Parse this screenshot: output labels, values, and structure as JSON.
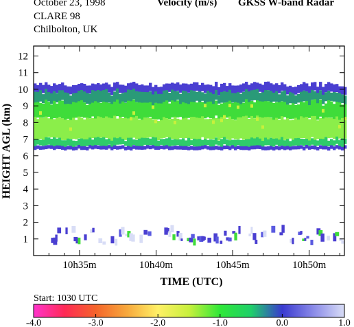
{
  "header": {
    "date": "October  23, 1998",
    "campaign": "CLARE 98",
    "location": "Chilbolton, UK",
    "quantity": "Velocity (m/s)",
    "instrument": "GKSS  W-band Radar"
  },
  "footer": {
    "start": "Start: 1030 UTC"
  },
  "chart_data": {
    "type": "heatmap",
    "title": "Velocity (m/s)",
    "xlabel": "TIME (UTC)",
    "ylabel": "HEIGHT AGL (km)",
    "x_range_minutes": [
      32,
      52.3
    ],
    "xlim": [
      32,
      52.3
    ],
    "ylim": [
      0,
      12.6
    ],
    "x_ticks": [
      {
        "value": 35,
        "label": "10h35m"
      },
      {
        "value": 40,
        "label": "10h40m"
      },
      {
        "value": 45,
        "label": "10h45m"
      },
      {
        "value": 50,
        "label": "10h50m"
      }
    ],
    "y_ticks": [
      {
        "value": 1,
        "label": "1"
      },
      {
        "value": 2,
        "label": "2"
      },
      {
        "value": 3,
        "label": "3"
      },
      {
        "value": 4,
        "label": "4"
      },
      {
        "value": 5,
        "label": "5"
      },
      {
        "value": 6,
        "label": "6"
      },
      {
        "value": 7,
        "label": "7"
      },
      {
        "value": 8,
        "label": "8"
      },
      {
        "value": 9,
        "label": "9"
      },
      {
        "value": 10,
        "label": "10"
      },
      {
        "value": 11,
        "label": "11"
      },
      {
        "value": 12,
        "label": "12"
      }
    ],
    "cloud_layers": [
      {
        "base_km": 6.4,
        "top_km": 10.3,
        "start_min": 32,
        "end_min": 52.3
      },
      {
        "base_km": 0.6,
        "top_km": 1.4,
        "start_min": 32.6,
        "end_min": 52.3
      }
    ],
    "colorbar": {
      "min": -4.0,
      "max": 1.0,
      "tick_labels": [
        "-4.0",
        "-3.0",
        "-2.0",
        "-1.0",
        "0.0",
        "1.0"
      ],
      "tick_values": [
        -4,
        -3,
        -2,
        -1,
        0,
        1
      ],
      "stops": [
        {
          "value": -4.0,
          "color": "#ff33cc"
        },
        {
          "value": -3.5,
          "color": "#ff2a55"
        },
        {
          "value": -3.0,
          "color": "#f4642a"
        },
        {
          "value": -2.5,
          "color": "#f7a83c"
        },
        {
          "value": -2.0,
          "color": "#fff066"
        },
        {
          "value": -1.5,
          "color": "#c8f03c"
        },
        {
          "value": -1.0,
          "color": "#2fe838"
        },
        {
          "value": -0.5,
          "color": "#1fcf6a"
        },
        {
          "value": 0.0,
          "color": "#3a3ad0"
        },
        {
          "value": 0.5,
          "color": "#8a8ae8"
        },
        {
          "value": 1.0,
          "color": "#d8ddf6"
        }
      ]
    },
    "colors": {
      "cloud_top": "#4a3fd1",
      "upper_band": "#2a9a78",
      "mid_band": "#3fdc3a",
      "lower_band": "#8bee4a",
      "cloud_base": "#2fcb6a",
      "base_edge": "#4a3fd1"
    }
  }
}
